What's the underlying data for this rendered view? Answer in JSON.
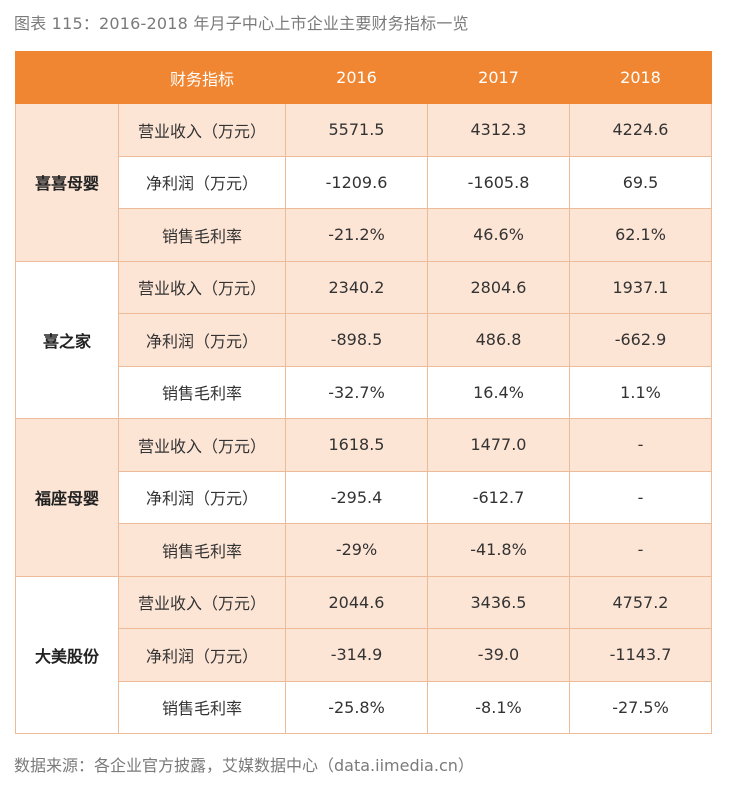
{
  "caption": "图表 115：2016-2018 年月子中心上市企业主要财务指标一览",
  "header": {
    "indicator": "财务指标",
    "y2016": "2016",
    "y2017": "2017",
    "y2018": "2018"
  },
  "groups": [
    {
      "name": "喜喜母婴",
      "rows": [
        {
          "metric": "营业收入（万元）",
          "v2016": "5571.5",
          "v2017": "4312.3",
          "v2018": "4224.6"
        },
        {
          "metric": "净利润（万元）",
          "v2016": "-1209.6",
          "v2017": "-1605.8",
          "v2018": "69.5"
        },
        {
          "metric": "销售毛利率",
          "v2016": "-21.2%",
          "v2017": "46.6%",
          "v2018": "62.1%"
        }
      ]
    },
    {
      "name": "喜之家",
      "rows": [
        {
          "metric": "营业收入（万元）",
          "v2016": "2340.2",
          "v2017": "2804.6",
          "v2018": "1937.1"
        },
        {
          "metric": "净利润（万元）",
          "v2016": "-898.5",
          "v2017": "486.8",
          "v2018": "-662.9"
        },
        {
          "metric": "销售毛利率",
          "v2016": "-32.7%",
          "v2017": "16.4%",
          "v2018": "1.1%"
        }
      ]
    },
    {
      "name": "福座母婴",
      "rows": [
        {
          "metric": "营业收入（万元）",
          "v2016": "1618.5",
          "v2017": "1477.0",
          "v2018": "-"
        },
        {
          "metric": "净利润（万元）",
          "v2016": "-295.4",
          "v2017": "-612.7",
          "v2018": "-"
        },
        {
          "metric": "销售毛利率",
          "v2016": "-29%",
          "v2017": "-41.8%",
          "v2018": "-"
        }
      ]
    },
    {
      "name": "大美股份",
      "rows": [
        {
          "metric": "营业收入（万元）",
          "v2016": "2044.6",
          "v2017": "3436.5",
          "v2018": "4757.2"
        },
        {
          "metric": "净利润（万元）",
          "v2016": "-314.9",
          "v2017": "-39.0",
          "v2018": "-1143.7"
        },
        {
          "metric": "销售毛利率",
          "v2016": "-25.8%",
          "v2017": "-8.1%",
          "v2018": "-27.5%"
        }
      ]
    }
  ],
  "source": "数据来源：各企业官方披露，艾媒数据中心（data.iimedia.cn）",
  "colors": {
    "header_bg": "#f08631",
    "shade_bg": "#fde5d6",
    "border": "#eebb99"
  }
}
